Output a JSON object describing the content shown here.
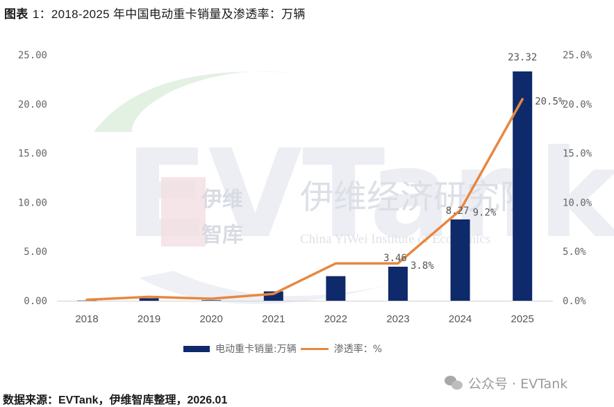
{
  "title": {
    "prefix": "图表",
    "number": "1：",
    "text": "2018-2025 年中国电动重卡销量及渗透率：万辆"
  },
  "chart_data": {
    "type": "bar+line",
    "title": "图表 1：2018-2025 年中国电动重卡销量及渗透率：万辆",
    "categories": [
      "2018",
      "2019",
      "2020",
      "2021",
      "2022",
      "2023",
      "2024",
      "2025"
    ],
    "series": [
      {
        "name": "电动重卡销量:万辆",
        "type": "bar",
        "axis": "left",
        "color": "#0f2a6b",
        "values": [
          0.02,
          0.25,
          0.05,
          0.95,
          2.5,
          3.46,
          8.27,
          23.32
        ],
        "data_labels": [
          "",
          "",
          "",
          "",
          "",
          "3.46",
          "8.27",
          "23.32"
        ]
      },
      {
        "name": "渗透率：%",
        "type": "line",
        "axis": "right",
        "color": "#e8873f",
        "values": [
          0.1,
          0.4,
          0.2,
          0.7,
          3.8,
          3.8,
          9.2,
          20.5
        ],
        "data_labels": [
          "",
          "",
          "",
          "",
          "",
          "3.8%",
          "9.2%",
          "20.5%"
        ]
      }
    ],
    "left_axis": {
      "ylim": [
        0,
        25
      ],
      "ticks": [
        "0.00",
        "5.00",
        "10.00",
        "15.00",
        "20.00",
        "25.00"
      ]
    },
    "right_axis": {
      "ylim": [
        0,
        25
      ],
      "ticks": [
        "0.0%",
        "5.0%",
        "10.0%",
        "15.0%",
        "20.0%",
        "25.0%"
      ]
    },
    "xlabel": "",
    "ylabel": "",
    "grid": false,
    "legend_position": "bottom"
  },
  "legend": {
    "bar_label": "电动重卡销量:万辆",
    "line_label": "渗透率：%"
  },
  "watermark": {
    "logo_text_1": "伊维",
    "logo_text_2": "智库",
    "org_cn": "伊维经济研究院",
    "org_en": "China YiWei Institute of Economics",
    "brand": "EVTank"
  },
  "source": "数据来源：EVTank，伊维智库整理，2026.01",
  "account_watermark": "公众号 · EVTank"
}
